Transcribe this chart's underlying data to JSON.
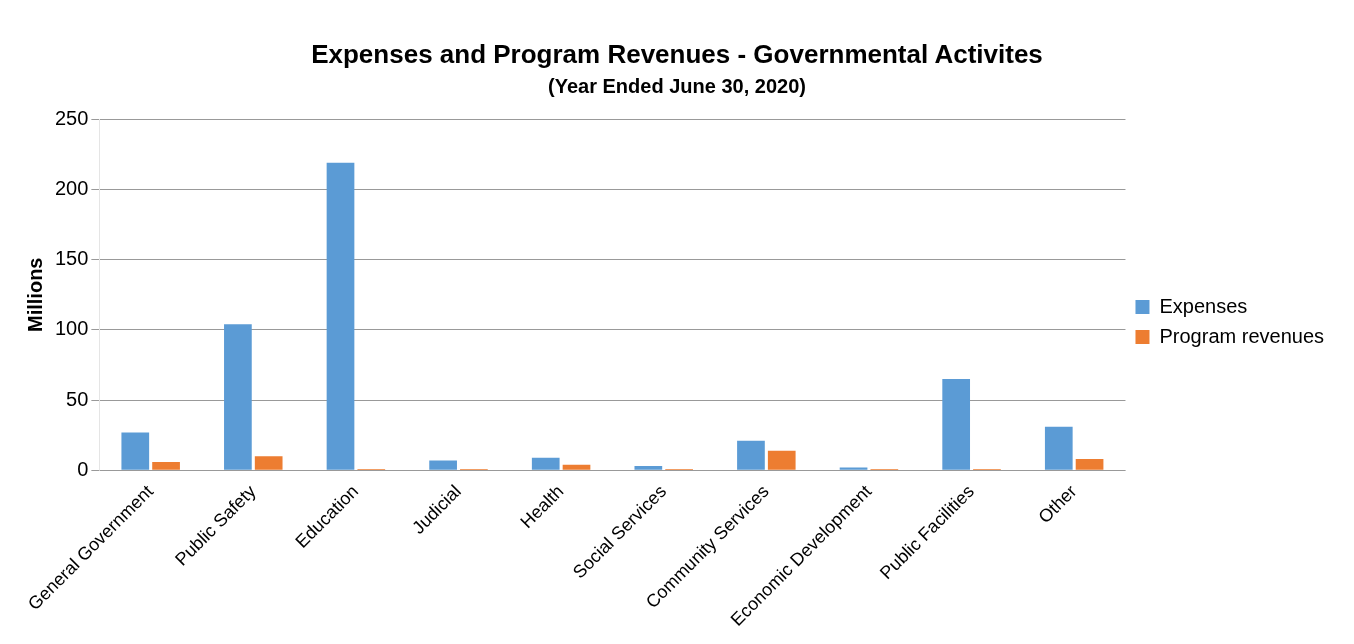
{
  "chart_data": {
    "type": "bar",
    "title": "Expenses and Program Revenues - Governmental Activites",
    "subtitle": "(Year Ended June 30, 2020)",
    "ylabel": "Millions",
    "categories": [
      "General Government",
      "Public Safety",
      "Education",
      "Judicial",
      "Health",
      "Social Services",
      "Community Services",
      "Economic Development",
      "Public Facilities",
      "Other"
    ],
    "series": [
      {
        "name": "Expenses",
        "color": "#5b9bd5",
        "values": [
          27,
          104,
          219,
          7,
          9,
          3,
          21,
          2,
          65,
          31
        ]
      },
      {
        "name": "Program revenues",
        "color": "#ed7d31",
        "values": [
          6,
          10,
          1,
          1,
          4,
          1,
          14,
          1,
          1,
          8
        ]
      }
    ],
    "ylim": [
      0,
      250
    ],
    "yticks": [
      0,
      50,
      100,
      150,
      200,
      250
    ],
    "grid": "y",
    "legend": "right"
  }
}
